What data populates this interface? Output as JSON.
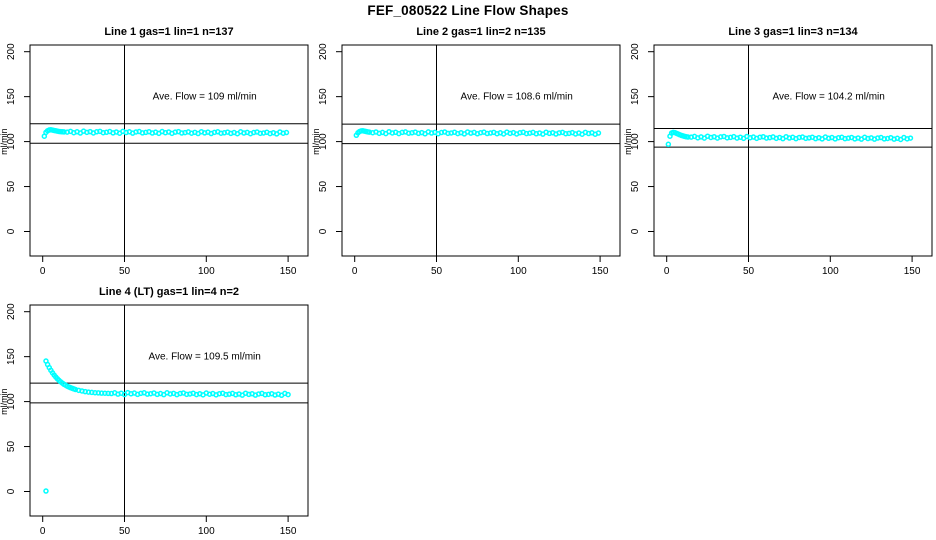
{
  "title": "FEF_080522  Line Flow Shapes",
  "colors": {
    "points": "#00FFFF",
    "axis": "#000000",
    "background": "#FFFFFF"
  },
  "axes": {
    "x_ticks": [
      0,
      50,
      100,
      150
    ],
    "y_ticks": [
      0,
      50,
      100,
      150,
      200
    ],
    "xlim": [
      0,
      150
    ],
    "ylim": [
      0,
      200
    ],
    "grid": false
  },
  "chart_data": [
    {
      "type": "scatter",
      "title": "Line 1 gas=1 lin=1 n=137",
      "ylabel": "ml/min",
      "xlabel": "",
      "annotation": "Ave. Flow =  109  ml/min",
      "annotation_xy": [
        99,
        150
      ],
      "ave_flow_ml_min": 109,
      "hlines": [
        119.9,
        98.1
      ],
      "vline": 50,
      "points": [
        [
          1,
          106
        ],
        [
          2,
          110.3
        ],
        [
          3,
          112.1
        ],
        [
          4,
          112.9
        ],
        [
          5,
          113.2
        ],
        [
          6,
          112.8
        ],
        [
          7,
          112.4
        ],
        [
          8,
          112
        ],
        [
          9,
          111.6
        ],
        [
          10,
          111.3
        ],
        [
          11,
          111.1
        ],
        [
          12,
          110.9
        ],
        [
          13,
          110.8
        ],
        [
          15,
          110.6
        ],
        [
          17,
          111.4
        ],
        [
          19,
          109.9
        ],
        [
          21,
          110.9
        ],
        [
          23,
          109.5
        ],
        [
          25,
          111.6
        ],
        [
          27,
          110.3
        ],
        [
          29,
          111.1
        ],
        [
          31,
          109.6
        ],
        [
          33,
          110.9
        ],
        [
          35,
          111.4
        ],
        [
          37,
          109.9
        ],
        [
          39,
          110.4
        ],
        [
          41,
          111.2
        ],
        [
          43,
          109.7
        ],
        [
          45,
          110.7
        ],
        [
          47,
          109.3
        ],
        [
          49,
          111.4
        ],
        [
          51,
          110.1
        ],
        [
          53,
          110.9
        ],
        [
          55,
          109.4
        ],
        [
          57,
          110.7
        ],
        [
          59,
          111.2
        ],
        [
          61,
          109.7
        ],
        [
          63,
          110.2
        ],
        [
          65,
          111
        ],
        [
          67,
          109.5
        ],
        [
          69,
          110.5
        ],
        [
          71,
          109.2
        ],
        [
          73,
          111.2
        ],
        [
          75,
          109.9
        ],
        [
          77,
          110.7
        ],
        [
          79,
          109.2
        ],
        [
          81,
          110.5
        ],
        [
          83,
          111.1
        ],
        [
          85,
          109.5
        ],
        [
          87,
          110
        ],
        [
          89,
          110.8
        ],
        [
          91,
          109.3
        ],
        [
          93,
          110.3
        ],
        [
          95,
          109
        ],
        [
          97,
          111
        ],
        [
          99,
          109.7
        ],
        [
          101,
          110.5
        ],
        [
          103,
          109
        ],
        [
          105,
          110.3
        ],
        [
          107,
          110.9
        ],
        [
          109,
          109.3
        ],
        [
          111,
          109.8
        ],
        [
          113,
          110.6
        ],
        [
          115,
          109.1
        ],
        [
          117,
          110.1
        ],
        [
          119,
          108.8
        ],
        [
          121,
          110.9
        ],
        [
          123,
          109.5
        ],
        [
          125,
          110.3
        ],
        [
          127,
          108.8
        ],
        [
          129,
          110.1
        ],
        [
          131,
          110.7
        ],
        [
          133,
          109.2
        ],
        [
          135,
          109.6
        ],
        [
          137,
          110.4
        ],
        [
          139,
          108.9
        ],
        [
          141,
          109.9
        ],
        [
          143,
          108.6
        ],
        [
          145,
          110.7
        ],
        [
          147,
          109.3
        ],
        [
          149,
          110.1
        ]
      ]
    },
    {
      "type": "scatter",
      "title": "Line 2 gas=1 lin=2 n=135",
      "ylabel": "ml/min",
      "xlabel": "",
      "annotation": "Ave. Flow =  108.6  ml/min",
      "annotation_xy": [
        99,
        150
      ],
      "ave_flow_ml_min": 108.6,
      "hlines": [
        119.5,
        97.7
      ],
      "vline": 50,
      "points": [
        [
          1,
          107
        ],
        [
          2,
          109.8
        ],
        [
          3,
          111.3
        ],
        [
          4,
          111.9
        ],
        [
          5,
          112
        ],
        [
          6,
          111.6
        ],
        [
          7,
          111.2
        ],
        [
          8,
          110.8
        ],
        [
          9,
          110.5
        ],
        [
          11,
          109.9
        ],
        [
          13,
          110.7
        ],
        [
          15,
          109.2
        ],
        [
          17,
          110.2
        ],
        [
          19,
          108.9
        ],
        [
          21,
          111
        ],
        [
          23,
          109.6
        ],
        [
          25,
          110.4
        ],
        [
          27,
          108.9
        ],
        [
          29,
          110.2
        ],
        [
          31,
          110.8
        ],
        [
          33,
          109.3
        ],
        [
          35,
          109.8
        ],
        [
          37,
          110.6
        ],
        [
          39,
          109.1
        ],
        [
          41,
          110
        ],
        [
          43,
          108.7
        ],
        [
          45,
          110.8
        ],
        [
          47,
          109.5
        ],
        [
          49,
          110.3
        ],
        [
          51,
          108.8
        ],
        [
          53,
          110.1
        ],
        [
          55,
          110.7
        ],
        [
          57,
          109.2
        ],
        [
          59,
          109.6
        ],
        [
          61,
          110.4
        ],
        [
          63,
          108.9
        ],
        [
          65,
          109.9
        ],
        [
          67,
          108.6
        ],
        [
          69,
          110.7
        ],
        [
          71,
          109.4
        ],
        [
          73,
          110.2
        ],
        [
          75,
          108.7
        ],
        [
          77,
          109.9
        ],
        [
          79,
          110.5
        ],
        [
          81,
          109
        ],
        [
          83,
          109.5
        ],
        [
          85,
          110.3
        ],
        [
          87,
          108.8
        ],
        [
          89,
          109.8
        ],
        [
          91,
          108.5
        ],
        [
          93,
          110.6
        ],
        [
          95,
          109.2
        ],
        [
          97,
          110
        ],
        [
          99,
          108.5
        ],
        [
          101,
          109.8
        ],
        [
          103,
          110.4
        ],
        [
          105,
          108.9
        ],
        [
          107,
          109.4
        ],
        [
          109,
          110.2
        ],
        [
          111,
          108.7
        ],
        [
          113,
          109.6
        ],
        [
          115,
          108.3
        ],
        [
          117,
          110.4
        ],
        [
          119,
          109.1
        ],
        [
          121,
          109.9
        ],
        [
          123,
          108.4
        ],
        [
          125,
          109.7
        ],
        [
          127,
          110.3
        ],
        [
          129,
          108.8
        ],
        [
          131,
          109.2
        ],
        [
          133,
          110
        ],
        [
          135,
          108.5
        ],
        [
          137,
          109.5
        ],
        [
          139,
          108.2
        ],
        [
          141,
          110.3
        ],
        [
          143,
          109
        ],
        [
          145,
          109.8
        ],
        [
          147,
          108.2
        ],
        [
          149,
          109.5
        ]
      ]
    },
    {
      "type": "scatter",
      "title": "Line 3 gas=1 lin=3 n=134",
      "ylabel": "ml/min",
      "xlabel": "",
      "annotation": "Ave. Flow =  104.2  ml/min",
      "annotation_xy": [
        99,
        150
      ],
      "ave_flow_ml_min": 104.2,
      "hlines": [
        114.6,
        93.8
      ],
      "vline": 50,
      "points": [
        [
          1,
          97
        ],
        [
          2,
          106
        ],
        [
          3,
          109.5
        ],
        [
          4,
          110.3
        ],
        [
          5,
          110
        ],
        [
          6,
          109.2
        ],
        [
          7,
          108.4
        ],
        [
          8,
          107.6
        ],
        [
          9,
          106.9
        ],
        [
          10,
          106.3
        ],
        [
          11,
          105.8
        ],
        [
          12,
          105.4
        ],
        [
          13,
          105.1
        ],
        [
          15,
          105
        ],
        [
          17,
          105.8
        ],
        [
          19,
          104.2
        ],
        [
          21,
          105.2
        ],
        [
          23,
          103.9
        ],
        [
          25,
          106
        ],
        [
          27,
          104.6
        ],
        [
          29,
          105.4
        ],
        [
          31,
          103.9
        ],
        [
          33,
          105.2
        ],
        [
          35,
          105.7
        ],
        [
          37,
          104.2
        ],
        [
          39,
          104.7
        ],
        [
          41,
          105.5
        ],
        [
          43,
          103.9
        ],
        [
          45,
          104.9
        ],
        [
          47,
          103.6
        ],
        [
          49,
          105.7
        ],
        [
          51,
          104.3
        ],
        [
          53,
          105.1
        ],
        [
          55,
          103.6
        ],
        [
          57,
          104.9
        ],
        [
          59,
          105.4
        ],
        [
          61,
          103.9
        ],
        [
          63,
          104.4
        ],
        [
          65,
          105.2
        ],
        [
          67,
          103.6
        ],
        [
          69,
          104.6
        ],
        [
          71,
          103.3
        ],
        [
          73,
          105.4
        ],
        [
          75,
          104
        ],
        [
          77,
          104.8
        ],
        [
          79,
          103.3
        ],
        [
          81,
          104.6
        ],
        [
          83,
          105.1
        ],
        [
          85,
          103.6
        ],
        [
          87,
          104.1
        ],
        [
          89,
          104.9
        ],
        [
          91,
          103.3
        ],
        [
          93,
          104.3
        ],
        [
          95,
          103
        ],
        [
          97,
          105.1
        ],
        [
          99,
          103.7
        ],
        [
          101,
          104.5
        ],
        [
          103,
          103
        ],
        [
          105,
          104.3
        ],
        [
          107,
          104.8
        ],
        [
          109,
          103.3
        ],
        [
          111,
          103.8
        ],
        [
          113,
          104.6
        ],
        [
          115,
          103
        ],
        [
          117,
          104
        ],
        [
          119,
          102.7
        ],
        [
          121,
          104.8
        ],
        [
          123,
          103.4
        ],
        [
          125,
          104.2
        ],
        [
          127,
          102.7
        ],
        [
          129,
          104
        ],
        [
          131,
          104.5
        ],
        [
          133,
          103
        ],
        [
          135,
          103.5
        ],
        [
          137,
          104.3
        ],
        [
          139,
          102.7
        ],
        [
          141,
          103.7
        ],
        [
          143,
          102.4
        ],
        [
          145,
          104.5
        ],
        [
          147,
          103.1
        ],
        [
          149,
          103.9
        ]
      ]
    },
    {
      "type": "scatter",
      "title": "Line 4 (LT) gas=1 lin=4 n=2",
      "ylabel": "ml/min",
      "xlabel": "",
      "annotation": "Ave. Flow =  109.5  ml/min",
      "annotation_xy": [
        99,
        150
      ],
      "ave_flow_ml_min": 109.5,
      "hlines": [
        120.5,
        98.6
      ],
      "vline": 50,
      "points": [
        [
          2,
          0.5
        ],
        [
          2,
          145.1
        ],
        [
          3,
          141.2
        ],
        [
          4,
          137.8
        ],
        [
          5,
          134.8
        ],
        [
          6,
          132
        ],
        [
          7,
          129.5
        ],
        [
          8,
          127.3
        ],
        [
          9,
          125.4
        ],
        [
          10,
          123.6
        ],
        [
          11,
          122
        ],
        [
          12,
          120.6
        ],
        [
          13,
          119.3
        ],
        [
          14,
          118.2
        ],
        [
          15,
          117.2
        ],
        [
          16,
          116.3
        ],
        [
          17,
          115.5
        ],
        [
          18,
          114.8
        ],
        [
          19,
          114.1
        ],
        [
          20,
          113.5
        ],
        [
          22,
          112.5
        ],
        [
          24,
          111.8
        ],
        [
          26,
          111.1
        ],
        [
          28,
          110.6
        ],
        [
          30,
          110.2
        ],
        [
          32,
          109.9
        ],
        [
          34,
          109.7
        ],
        [
          36,
          109.4
        ],
        [
          38,
          109.3
        ],
        [
          40,
          109.1
        ],
        [
          42,
          109
        ],
        [
          44,
          109.8
        ],
        [
          46,
          108.3
        ],
        [
          48,
          109.3
        ],
        [
          50,
          107.9
        ],
        [
          52,
          110
        ],
        [
          54,
          108.7
        ],
        [
          56,
          109.5
        ],
        [
          58,
          108
        ],
        [
          60,
          109.2
        ],
        [
          62,
          109.8
        ],
        [
          64,
          108.3
        ],
        [
          66,
          108.8
        ],
        [
          68,
          109.6
        ],
        [
          70,
          108
        ],
        [
          72,
          109
        ],
        [
          74,
          107.7
        ],
        [
          76,
          109.8
        ],
        [
          78,
          108.5
        ],
        [
          80,
          109.2
        ],
        [
          82,
          107.7
        ],
        [
          84,
          109
        ],
        [
          86,
          109.6
        ],
        [
          88,
          108.1
        ],
        [
          90,
          108.5
        ],
        [
          92,
          109.3
        ],
        [
          94,
          107.8
        ],
        [
          96,
          108.8
        ],
        [
          98,
          107.5
        ],
        [
          100,
          109.5
        ],
        [
          102,
          108.2
        ],
        [
          104,
          109
        ],
        [
          106,
          107.5
        ],
        [
          108,
          108.8
        ],
        [
          110,
          109.3
        ],
        [
          112,
          107.8
        ],
        [
          114,
          108.3
        ],
        [
          116,
          109.1
        ],
        [
          118,
          107.6
        ],
        [
          120,
          108.5
        ],
        [
          122,
          107.2
        ],
        [
          124,
          109.3
        ],
        [
          126,
          108
        ],
        [
          128,
          108.8
        ],
        [
          130,
          107.2
        ],
        [
          132,
          108.5
        ],
        [
          134,
          109.1
        ],
        [
          136,
          107.6
        ],
        [
          138,
          108.1
        ],
        [
          140,
          108.8
        ],
        [
          142,
          107.3
        ],
        [
          144,
          108.3
        ],
        [
          146,
          107
        ],
        [
          148,
          109.1
        ],
        [
          150,
          107.8
        ]
      ]
    }
  ]
}
